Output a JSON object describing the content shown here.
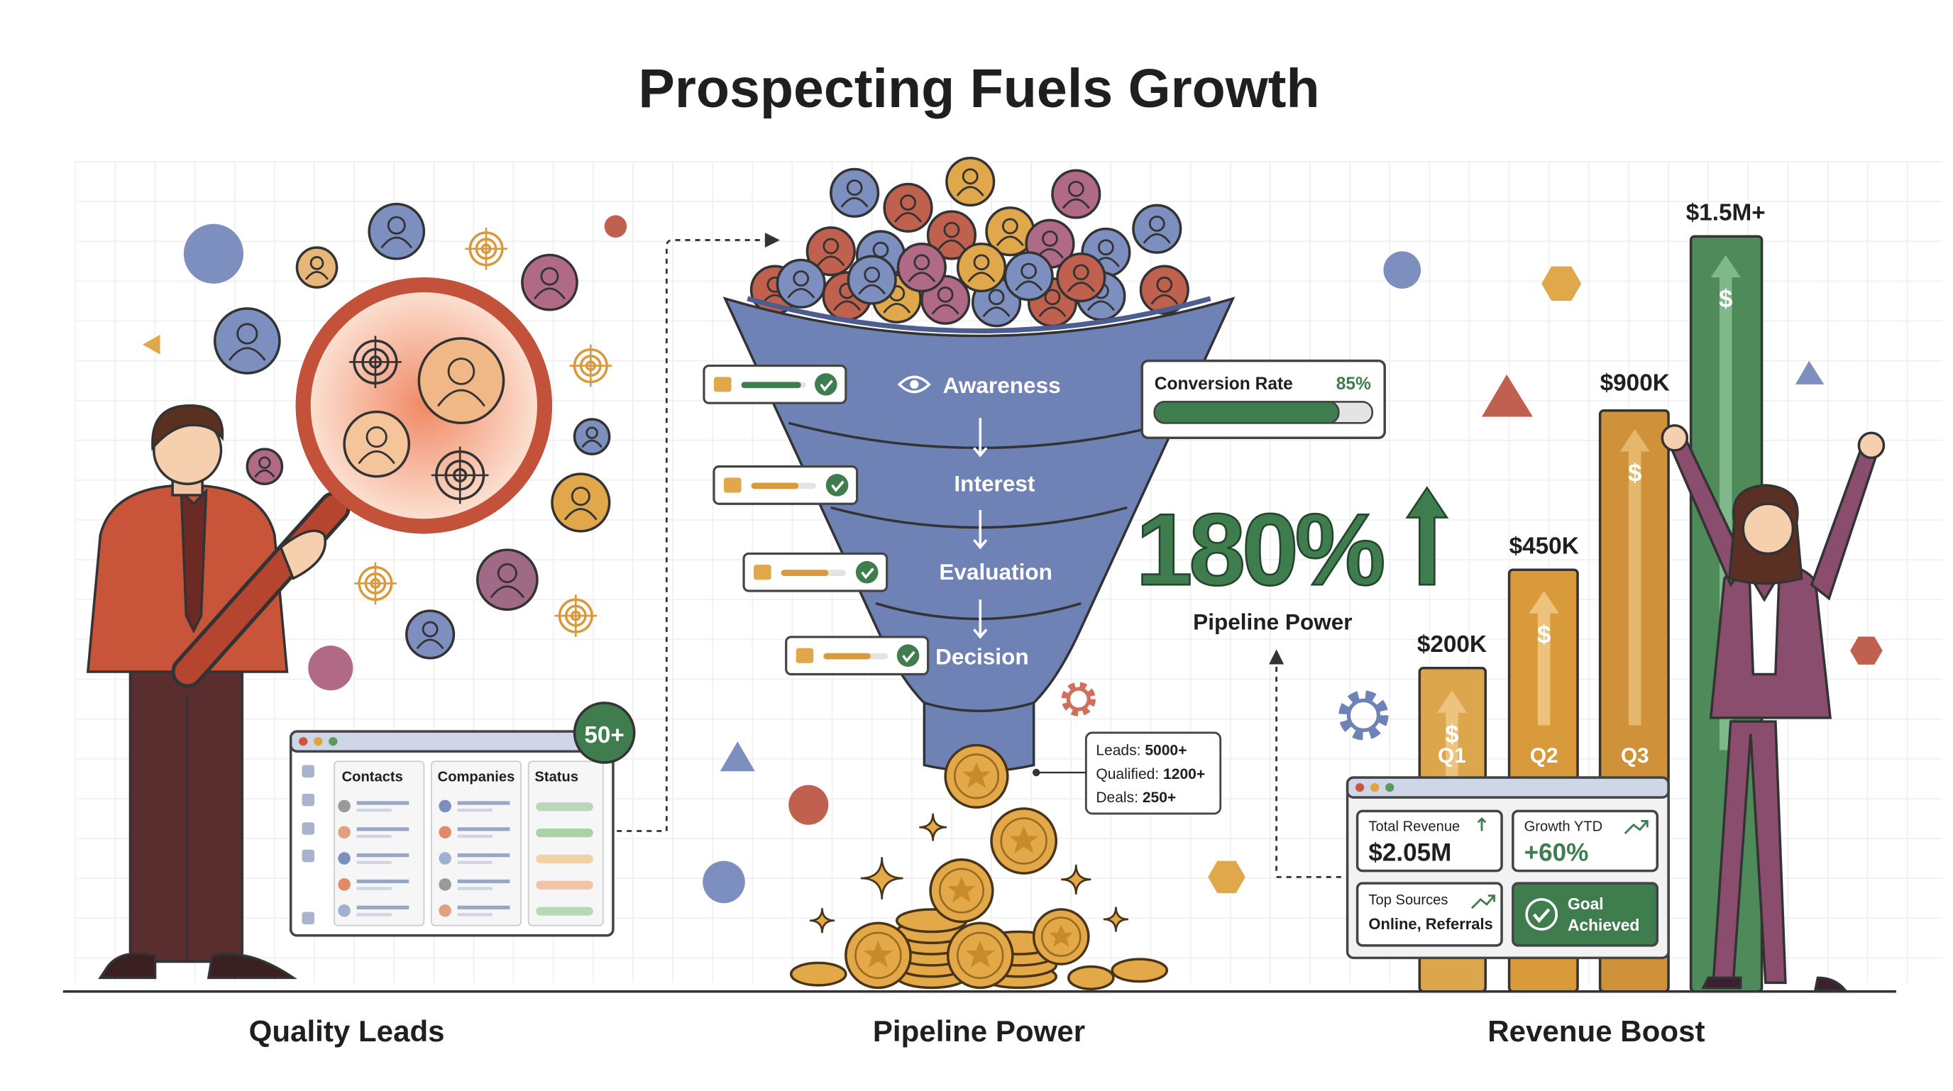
{
  "title": "Prospecting Fuels Growth",
  "sections": [
    {
      "caption": "Quality Leads"
    },
    {
      "caption": "Pipeline Power"
    },
    {
      "caption": "Revenue Boost"
    }
  ],
  "leads": {
    "badge": "50+",
    "columns": [
      "Contacts",
      "Companies",
      "Status"
    ]
  },
  "funnel": {
    "stages": [
      "Awareness",
      "Interest",
      "Evaluation",
      "Decision"
    ],
    "conversion": {
      "label": "Conversion Rate",
      "value": "85%"
    },
    "growth": {
      "value": "180%",
      "label": "Pipeline Power"
    },
    "stats": [
      {
        "label": "Leads:",
        "value": "5000+"
      },
      {
        "label": "Qualified:",
        "value": "1200+"
      },
      {
        "label": "Deals:",
        "value": "250+"
      }
    ]
  },
  "revenue": {
    "bars": [
      {
        "label": "$200K",
        "quarter": "Q1"
      },
      {
        "label": "$450K",
        "quarter": "Q2"
      },
      {
        "label": "$900K",
        "quarter": "Q3"
      },
      {
        "label": "$1.5M+"
      }
    ],
    "dashboard": {
      "cards": [
        {
          "label": "Total Revenue",
          "value": "$2.05M"
        },
        {
          "label": "Growth YTD",
          "value": "+60%"
        },
        {
          "label": "Top Sources",
          "value": "Online, Referrals"
        }
      ],
      "goal": [
        "Goal",
        "Achieved"
      ]
    }
  }
}
